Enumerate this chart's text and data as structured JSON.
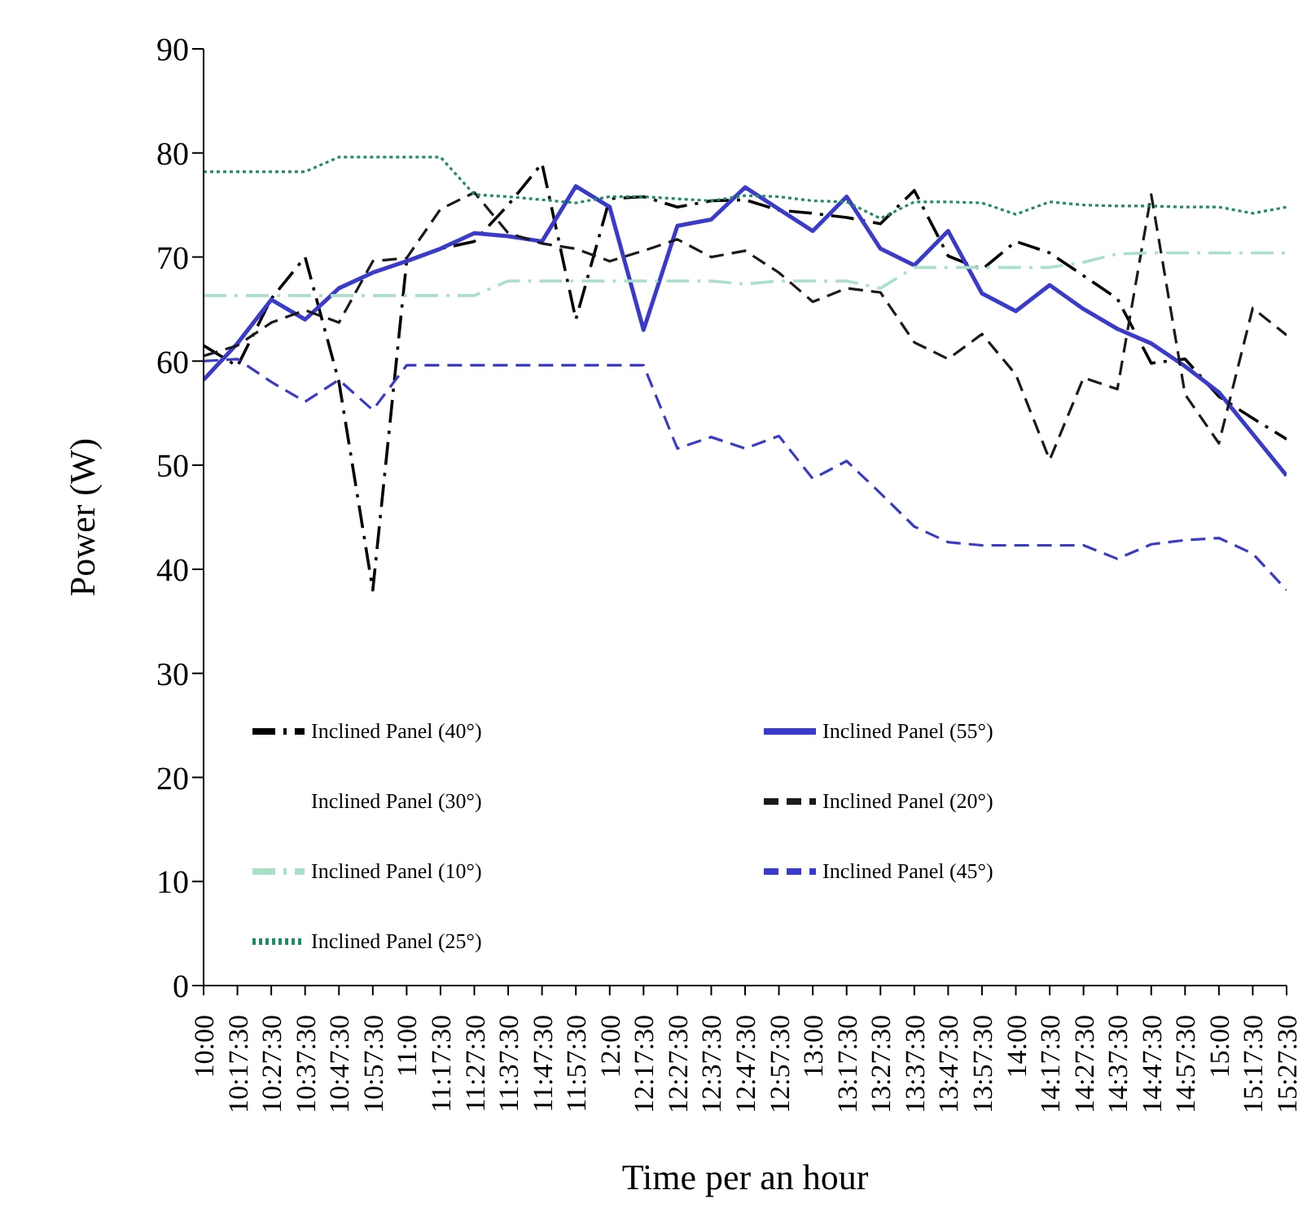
{
  "chart_data": {
    "type": "line",
    "xlabel": "Time per an hour",
    "ylabel": "Power (W)",
    "categories": [
      "10:00",
      "10:17:30",
      "10:27:30",
      "10:37:30",
      "10:47:30",
      "10:57:30",
      "11:00",
      "11:17:30",
      "11:27:30",
      "11:37:30",
      "11:47:30",
      "11:57:30",
      "12:00",
      "12:17:30",
      "12:27:30",
      "12:37:30",
      "12:47:30",
      "12:57:30",
      "13:00",
      "13:17:30",
      "13:27:30",
      "13:37:30",
      "13:47:30",
      "13:57:30",
      "14:00",
      "14:17:30",
      "14:27:30",
      "14:37:30",
      "14:47:30",
      "14:57:30",
      "15:00",
      "15:17:30",
      "15:27:30"
    ],
    "ylim": [
      0,
      90
    ],
    "yticks": [
      0,
      10,
      20,
      30,
      40,
      50,
      60,
      70,
      80,
      90
    ],
    "grid": false,
    "legend": "bottom",
    "marker": "none",
    "series": [
      {
        "name": "Inclined Panel (40°)",
        "color": "#000000",
        "line_style": "dashdot",
        "values": [
          61.5,
          59.5,
          66,
          70,
          58,
          38,
          69.6,
          70.8,
          71.5,
          75,
          79,
          64,
          75.6,
          75.8,
          74.8,
          75.4,
          75.5,
          74.5,
          74.2,
          73.8,
          73.2,
          76.4,
          70.1,
          68.8,
          71.5,
          70.4,
          68.2,
          66,
          59.8,
          60.2,
          56.6,
          54.5,
          52.5
        ]
      },
      {
        "name": "Inclined Panel (55°)",
        "color": "#3a3acb",
        "line_style": "solid",
        "values": [
          58.2,
          61.7,
          65.9,
          64,
          67,
          68.5,
          69.6,
          70.8,
          72.3,
          72,
          71.5,
          76.8,
          74.8,
          63,
          73,
          73.6,
          76.7,
          74.6,
          72.5,
          75.8,
          70.8,
          69.2,
          72.5,
          66.5,
          64.8,
          67.3,
          65,
          63.1,
          61.7,
          59.5,
          57,
          53,
          49
        ]
      },
      {
        "name": "Inclined Panel (30°)",
        "line_style": "solid",
        "values": [
          null,
          null,
          null,
          null,
          null,
          null,
          null,
          null,
          null,
          null,
          null,
          null,
          null,
          null,
          null,
          null,
          null,
          null,
          null,
          null,
          null,
          null,
          null,
          null,
          null,
          null,
          null,
          null,
          null,
          null,
          null,
          null,
          null
        ]
      },
      {
        "name": "Inclined Panel (20°)",
        "color": "#1a1a1a",
        "line_style": "dashed",
        "values": [
          60.5,
          61.5,
          63.7,
          64.9,
          63.7,
          69.6,
          69.9,
          74.6,
          76.2,
          72.3,
          71.3,
          70.8,
          69.6,
          70.6,
          71.7,
          70,
          70.6,
          68.5,
          65.7,
          67,
          66.6,
          61.8,
          60.2,
          62.6,
          58.7,
          50.5,
          58.4,
          57.3,
          76,
          56.8,
          52.1,
          65.1,
          62.5
        ]
      },
      {
        "name": "Inclined Panel (10°)",
        "color": "#a8e0c8",
        "line_style": "dashdot",
        "values": [
          66.3,
          66.3,
          66.3,
          66.3,
          66.3,
          66.3,
          66.3,
          66.3,
          66.3,
          67.7,
          67.7,
          67.7,
          67.7,
          67.7,
          67.7,
          67.7,
          67.4,
          67.7,
          67.7,
          67.7,
          67,
          69,
          69,
          69,
          69,
          69,
          69.5,
          70.3,
          70.4,
          70.4,
          70.4,
          70.4,
          70.4
        ]
      },
      {
        "name": "Inclined Panel (45°)",
        "color": "#3a3acb",
        "line_style": "dashed",
        "values": [
          60,
          60.2,
          58,
          56.1,
          58.2,
          55.3,
          59.6,
          59.6,
          59.6,
          59.6,
          59.6,
          59.6,
          59.6,
          59.6,
          51.6,
          52.7,
          51.6,
          52.8,
          48.7,
          50.4,
          47.3,
          44.1,
          42.6,
          42.3,
          42.3,
          42.3,
          42.3,
          41,
          42.4,
          42.8,
          43,
          41.5,
          38
        ]
      },
      {
        "name": "Inclined Panel (25°)",
        "color": "#1e8c64",
        "line_style": "dotted",
        "values": [
          78.2,
          78.2,
          78.2,
          78.2,
          79.6,
          79.6,
          79.6,
          79.6,
          76,
          75.8,
          75.5,
          75.2,
          75.8,
          75.8,
          75.6,
          75.4,
          75.9,
          75.8,
          75.4,
          75.3,
          73.7,
          75.3,
          75.3,
          75.2,
          74.1,
          75.3,
          75,
          74.9,
          74.9,
          74.8,
          74.8,
          74.2,
          74.8
        ]
      }
    ]
  }
}
